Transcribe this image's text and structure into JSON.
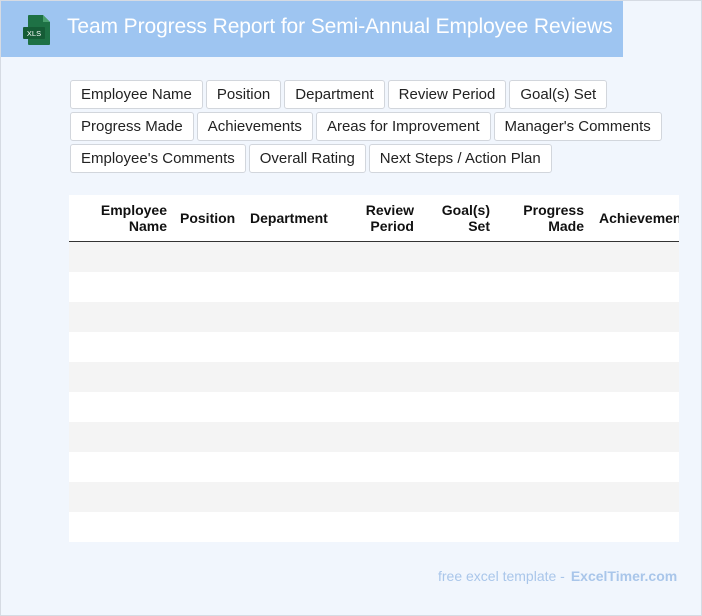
{
  "header": {
    "title": "Team Progress Report for Semi-Annual Employee Reviews",
    "icon": "xls-file-icon",
    "icon_label": "XLS"
  },
  "field_chips": [
    [
      "Employee Name",
      "Position",
      "Department",
      "Review Period",
      "Goal(s) Set"
    ],
    [
      "Progress Made",
      "Achievements",
      "Areas for Improvement",
      "Manager's Comments"
    ],
    [
      "Employee's Comments",
      "Overall Rating",
      "Next Steps / Action Plan"
    ]
  ],
  "table": {
    "headers": [
      {
        "line1": "Employee",
        "line2": "Name"
      },
      {
        "line1": "Position",
        "line2": ""
      },
      {
        "line1": "Department",
        "line2": ""
      },
      {
        "line1": "Review",
        "line2": "Period"
      },
      {
        "line1": "Goal(s)",
        "line2": "Set"
      },
      {
        "line1": "Progress",
        "line2": "Made"
      },
      {
        "line1": "Achievements",
        "line2": ""
      }
    ],
    "empty_rows": 10
  },
  "footer": {
    "text": "free excel template -",
    "brand": "ExcelTimer.com"
  },
  "colors": {
    "title_bar": "#9ec5f1",
    "background": "#f1f6fd",
    "row_shade": "#f4f4f4",
    "footer_text": "#a9c6ea",
    "xls_green": "#1e7145"
  }
}
